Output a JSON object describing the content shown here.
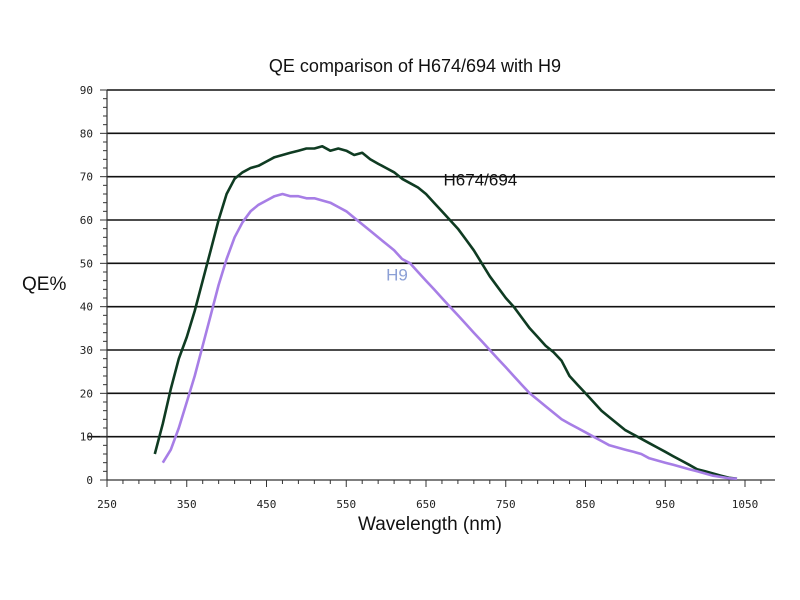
{
  "chart_data": {
    "type": "line",
    "title": "QE comparison of H674/694 with H9",
    "xlabel": "Wavelength (nm)",
    "ylabel": "QE%",
    "xlim": [
      250,
      1050
    ],
    "ylim": [
      0,
      90
    ],
    "x_ticks": [
      250,
      350,
      450,
      550,
      650,
      750,
      850,
      950,
      1050
    ],
    "y_ticks": [
      0,
      10,
      20,
      30,
      40,
      50,
      60,
      70,
      80,
      90
    ],
    "grid": "horizontal",
    "series": [
      {
        "name": "H674/694",
        "color": "#0f3b22",
        "label_color": "#111111",
        "points": [
          [
            310,
            6
          ],
          [
            320,
            13
          ],
          [
            330,
            21
          ],
          [
            340,
            28
          ],
          [
            350,
            33
          ],
          [
            360,
            39
          ],
          [
            370,
            46
          ],
          [
            380,
            53
          ],
          [
            390,
            60
          ],
          [
            400,
            66
          ],
          [
            410,
            69.5
          ],
          [
            420,
            71
          ],
          [
            430,
            72
          ],
          [
            440,
            72.5
          ],
          [
            450,
            73.5
          ],
          [
            460,
            74.5
          ],
          [
            470,
            75
          ],
          [
            480,
            75.5
          ],
          [
            490,
            76
          ],
          [
            500,
            76.5
          ],
          [
            510,
            76.5
          ],
          [
            520,
            77
          ],
          [
            530,
            76
          ],
          [
            540,
            76.5
          ],
          [
            550,
            76
          ],
          [
            560,
            75
          ],
          [
            570,
            75.5
          ],
          [
            580,
            74
          ],
          [
            590,
            73
          ],
          [
            600,
            72
          ],
          [
            610,
            71
          ],
          [
            620,
            69.5
          ],
          [
            630,
            68.5
          ],
          [
            640,
            67.5
          ],
          [
            650,
            66
          ],
          [
            660,
            64
          ],
          [
            670,
            62
          ],
          [
            680,
            60
          ],
          [
            690,
            58
          ],
          [
            700,
            55.5
          ],
          [
            710,
            53
          ],
          [
            720,
            50
          ],
          [
            730,
            47
          ],
          [
            740,
            44.5
          ],
          [
            750,
            42
          ],
          [
            760,
            40
          ],
          [
            770,
            37.5
          ],
          [
            780,
            35
          ],
          [
            790,
            33
          ],
          [
            800,
            31
          ],
          [
            810,
            29.5
          ],
          [
            820,
            27.5
          ],
          [
            830,
            24
          ],
          [
            840,
            22
          ],
          [
            850,
            20
          ],
          [
            860,
            18
          ],
          [
            870,
            16
          ],
          [
            880,
            14.5
          ],
          [
            890,
            13
          ],
          [
            900,
            11.5
          ],
          [
            910,
            10.5
          ],
          [
            920,
            9.5
          ],
          [
            930,
            8.5
          ],
          [
            940,
            7.5
          ],
          [
            950,
            6.5
          ],
          [
            960,
            5.5
          ],
          [
            970,
            4.5
          ],
          [
            980,
            3.5
          ],
          [
            990,
            2.5
          ],
          [
            1000,
            2
          ],
          [
            1010,
            1.5
          ],
          [
            1020,
            1
          ],
          [
            1030,
            0.5
          ],
          [
            1040,
            0.3
          ]
        ],
        "label_text": "H674/694"
      },
      {
        "name": "H9",
        "color": "#a77ee6",
        "label_color": "#8ca0d6",
        "points": [
          [
            320,
            4
          ],
          [
            330,
            7
          ],
          [
            340,
            12
          ],
          [
            350,
            18
          ],
          [
            360,
            24
          ],
          [
            370,
            31
          ],
          [
            380,
            38
          ],
          [
            390,
            45
          ],
          [
            400,
            51
          ],
          [
            410,
            56
          ],
          [
            420,
            59.5
          ],
          [
            430,
            62
          ],
          [
            440,
            63.5
          ],
          [
            450,
            64.5
          ],
          [
            460,
            65.5
          ],
          [
            470,
            66
          ],
          [
            480,
            65.5
          ],
          [
            490,
            65.5
          ],
          [
            500,
            65
          ],
          [
            510,
            65
          ],
          [
            520,
            64.5
          ],
          [
            530,
            64
          ],
          [
            540,
            63
          ],
          [
            550,
            62
          ],
          [
            560,
            60.5
          ],
          [
            570,
            59
          ],
          [
            580,
            57.5
          ],
          [
            590,
            56
          ],
          [
            600,
            54.5
          ],
          [
            610,
            53
          ],
          [
            620,
            51
          ],
          [
            630,
            50
          ],
          [
            640,
            48
          ],
          [
            650,
            46
          ],
          [
            660,
            44
          ],
          [
            670,
            42
          ],
          [
            680,
            40
          ],
          [
            690,
            38
          ],
          [
            700,
            36
          ],
          [
            710,
            34
          ],
          [
            720,
            32
          ],
          [
            730,
            30
          ],
          [
            740,
            28
          ],
          [
            750,
            26
          ],
          [
            760,
            24
          ],
          [
            770,
            22
          ],
          [
            780,
            20
          ],
          [
            790,
            18.5
          ],
          [
            800,
            17
          ],
          [
            810,
            15.5
          ],
          [
            820,
            14
          ],
          [
            830,
            13
          ],
          [
            840,
            12
          ],
          [
            850,
            11
          ],
          [
            860,
            10
          ],
          [
            870,
            9
          ],
          [
            880,
            8
          ],
          [
            890,
            7.5
          ],
          [
            900,
            7
          ],
          [
            910,
            6.5
          ],
          [
            920,
            6
          ],
          [
            930,
            5
          ],
          [
            940,
            4.5
          ],
          [
            950,
            4
          ],
          [
            960,
            3.5
          ],
          [
            970,
            3
          ],
          [
            980,
            2.5
          ],
          [
            990,
            2
          ],
          [
            1000,
            1.5
          ],
          [
            1010,
            1
          ],
          [
            1020,
            0.7
          ],
          [
            1030,
            0.4
          ],
          [
            1040,
            0.3
          ]
        ],
        "label_text": "H9"
      }
    ]
  }
}
